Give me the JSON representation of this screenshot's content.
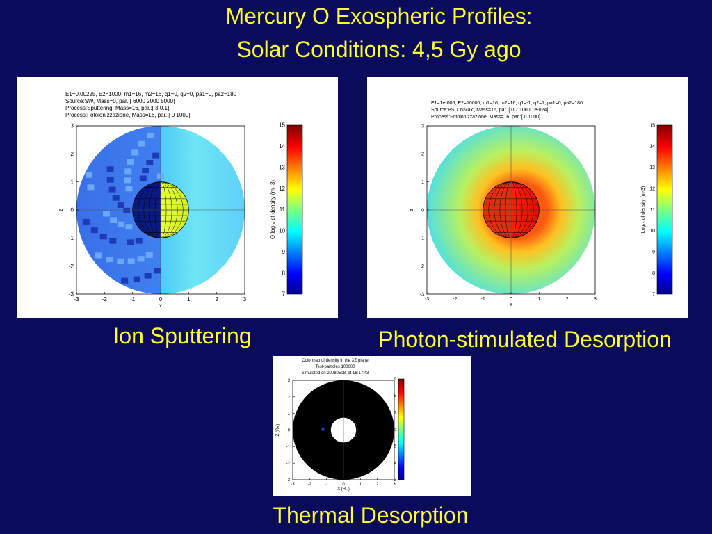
{
  "title": [
    "Mercury O Exospheric Profiles:",
    "Solar Conditions: 4,5 Gy ago"
  ],
  "panels": [
    {
      "caption": "Ion Sputtering",
      "header": [
        "E1=0.00225, E2=1000, m1=16, m2=16, q1=0, q2=0, pa1=0, pa2=180",
        "Source:SW, Mass=0, par.:[ 6000  2000  5000]",
        "Process:Sputtering, Mass=16, par.:[ 3        0.1]",
        "Process:Fotoionizzazione, Mass=16, par.:[ 0  1000]"
      ],
      "xticks": [
        "-3",
        "-2",
        "-1",
        "0",
        "1",
        "2",
        "3"
      ],
      "yticks": [
        "-3",
        "-2",
        "-1",
        "0",
        "1",
        "2",
        "3"
      ],
      "xlabel": "x",
      "ylabel": "z",
      "colorbar_ticks": [
        "7",
        "8",
        "9",
        "10",
        "11",
        "12",
        "13",
        "14",
        "15"
      ],
      "colorbar_label": "O log₁₀ of density (m -3)"
    },
    {
      "caption": "Photon-stimulated Desorption",
      "header": [
        "E1=1e-005, E2=10000, m1=16, m2=16, q1=-1, q2=1, pa1=0, pa2=180",
        "Source:PSD 'NMax', Mass=16, par.:[ 0.7         1000        1e-024]",
        "Process:Fotoionizzazione, Mass=16, par.:[ 0  1000]"
      ],
      "xticks": [
        "-3",
        "-2",
        "-1",
        "0",
        "1",
        "2",
        "3"
      ],
      "yticks": [
        "-3",
        "-2",
        "-1",
        "0",
        "1",
        "2",
        "3"
      ],
      "xlabel": "x",
      "ylabel": "z",
      "colorbar_ticks": [
        "7",
        "8",
        "9",
        "10",
        "11",
        "12",
        "13",
        "14",
        "15"
      ],
      "colorbar_label": "Log₁₀ of density (m-3)"
    },
    {
      "caption": "Thermal Desorption",
      "header": [
        "Colormap of density in the XZ plane",
        "Test-particles          100000",
        "Simulated on 20080508, at 16:17:43"
      ],
      "xticks": [
        "-3",
        "-2",
        "-1",
        "0",
        "1",
        "2",
        "3"
      ],
      "yticks": [
        "-3",
        "-2",
        "-1",
        "0",
        "1",
        "2",
        "3"
      ],
      "xlabel": "X (Rₘ)",
      "ylabel": "Z (Rₘ)",
      "colorbar_ticks": [
        "3",
        "4",
        "5",
        "6",
        "7",
        "8",
        "9"
      ],
      "colorbar_label": "Integral Density (m⁻³)"
    }
  ]
}
